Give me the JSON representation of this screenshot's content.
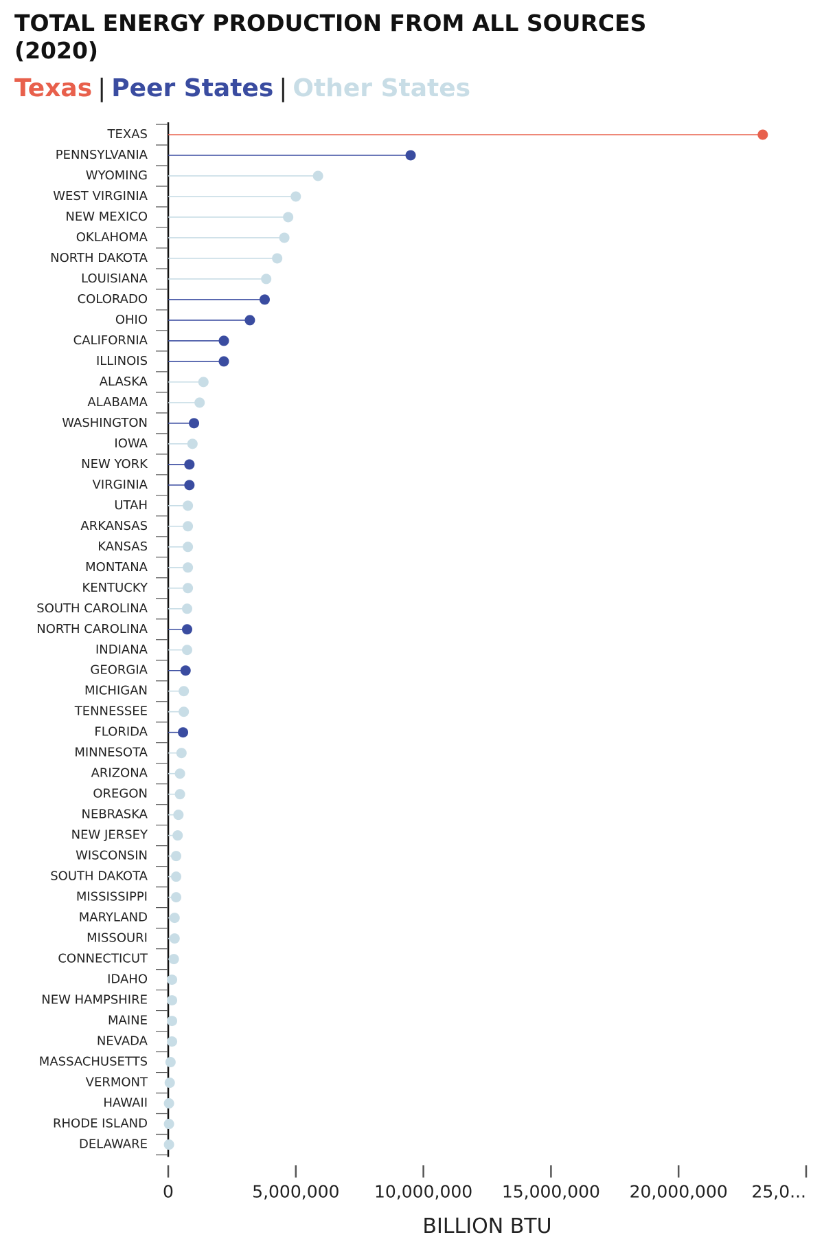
{
  "chart_data": {
    "type": "lollipop",
    "title": "TOTAL ENERGY PRODUCTION FROM ALL SOURCES (2020)",
    "legend": [
      {
        "name": "Texas",
        "color": "#e8604c"
      },
      {
        "name": "Peer States",
        "color": "#3a4ca0"
      },
      {
        "name": "Other States",
        "color": "#c8dde6"
      }
    ],
    "legend_separator": "|",
    "xlabel": "BILLION BTU",
    "categories": [
      "TEXAS",
      "PENNSYLVANIA",
      "WYOMING",
      "WEST VIRGINIA",
      "NEW MEXICO",
      "OKLAHOMA",
      "NORTH DAKOTA",
      "LOUISIANA",
      "COLORADO",
      "OHIO",
      "CALIFORNIA",
      "ILLINOIS",
      "ALASKA",
      "ALABAMA",
      "WASHINGTON",
      "IOWA",
      "NEW YORK",
      "VIRGINIA",
      "UTAH",
      "ARKANSAS",
      "KANSAS",
      "MONTANA",
      "KENTUCKY",
      "SOUTH CAROLINA",
      "NORTH CAROLINA",
      "INDIANA",
      "GEORGIA",
      "MICHIGAN",
      "TENNESSEE",
      "FLORIDA",
      "MINNESOTA",
      "ARIZONA",
      "OREGON",
      "NEBRASKA",
      "NEW JERSEY",
      "WISCONSIN",
      "SOUTH DAKOTA",
      "MISSISSIPPI",
      "MARYLAND",
      "MISSOURI",
      "CONNECTICUT",
      "IDAHO",
      "NEW HAMPSHIRE",
      "MAINE",
      "NEVADA",
      "MASSACHUSETTS",
      "VERMONT",
      "HAWAII",
      "RHODE ISLAND",
      "DELAWARE"
    ],
    "values": [
      23300000,
      9500000,
      5870000,
      5000000,
      4700000,
      4550000,
      4270000,
      3840000,
      3780000,
      3200000,
      2180000,
      2180000,
      1380000,
      1230000,
      1010000,
      950000,
      830000,
      830000,
      770000,
      770000,
      770000,
      770000,
      770000,
      740000,
      740000,
      740000,
      680000,
      610000,
      610000,
      580000,
      520000,
      460000,
      460000,
      400000,
      370000,
      310000,
      310000,
      310000,
      250000,
      250000,
      220000,
      150000,
      150000,
      150000,
      150000,
      90000,
      60000,
      30000,
      30000,
      30000
    ],
    "colors": [
      "#e8604c",
      "#3a4ca0",
      "#c8dde6",
      "#c8dde6",
      "#c8dde6",
      "#c8dde6",
      "#c8dde6",
      "#c8dde6",
      "#3a4ca0",
      "#3a4ca0",
      "#3a4ca0",
      "#3a4ca0",
      "#c8dde6",
      "#c8dde6",
      "#3a4ca0",
      "#c8dde6",
      "#3a4ca0",
      "#3a4ca0",
      "#c8dde6",
      "#c8dde6",
      "#c8dde6",
      "#c8dde6",
      "#c8dde6",
      "#c8dde6",
      "#3a4ca0",
      "#c8dde6",
      "#3a4ca0",
      "#c8dde6",
      "#c8dde6",
      "#3a4ca0",
      "#c8dde6",
      "#c8dde6",
      "#c8dde6",
      "#c8dde6",
      "#c8dde6",
      "#c8dde6",
      "#c8dde6",
      "#c8dde6",
      "#c8dde6",
      "#c8dde6",
      "#c8dde6",
      "#c8dde6",
      "#c8dde6",
      "#c8dde6",
      "#c8dde6",
      "#c8dde6",
      "#c8dde6",
      "#c8dde6",
      "#c8dde6",
      "#c8dde6"
    ],
    "xlim": [
      0,
      25000000
    ],
    "xticks": [
      0,
      {
        "value": 5000000,
        "label": "5,000,000"
      },
      {
        "value": 10000000,
        "label": "10,000,000"
      },
      {
        "value": 15000000,
        "label": "15,000,000"
      },
      {
        "value": 20000000,
        "label": "20,000,000"
      },
      {
        "value": 25000000,
        "label": "25,0..."
      }
    ]
  }
}
